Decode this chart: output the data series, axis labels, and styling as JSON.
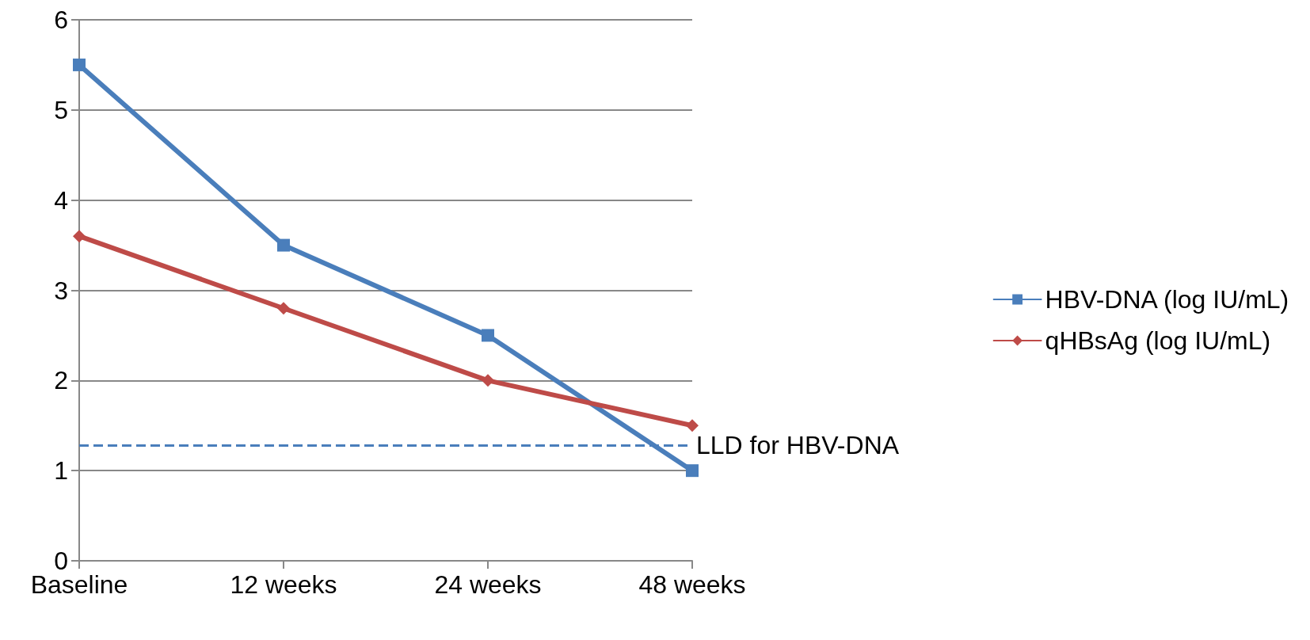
{
  "chart_data": {
    "type": "line",
    "categories": [
      "Baseline",
      "12 weeks",
      "24 weeks",
      "48 weeks"
    ],
    "series": [
      {
        "name": "HBV-DNA (log IU/mL)",
        "color": "#4a7ebb",
        "values": [
          5.5,
          3.5,
          2.5,
          1.0
        ],
        "marker": "square"
      },
      {
        "name": "qHBsAg (log IU/mL)",
        "color": "#be4b48",
        "values": [
          3.6,
          2.8,
          2.0,
          1.5
        ],
        "marker": "diamond"
      }
    ],
    "ylim": [
      0,
      6
    ],
    "yticks": [
      0,
      1,
      2,
      3,
      4,
      5,
      6
    ],
    "grid": "y",
    "legend": "right",
    "line_style": "solid",
    "ref_lines": [
      {
        "axis": "y",
        "value": 1.28,
        "label": "LLD for HBV-DNA",
        "color": "#4a7ebb",
        "line_style": "dashed"
      }
    ]
  }
}
